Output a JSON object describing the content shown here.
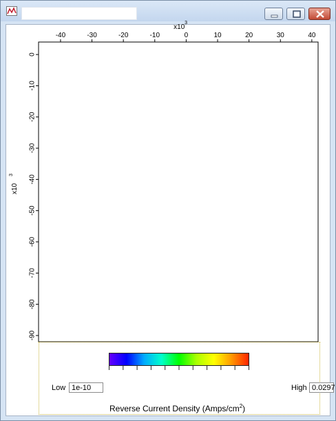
{
  "window": {
    "title": "",
    "buttons": [
      "minimize",
      "maximize",
      "close"
    ]
  },
  "wafer_map": {
    "x_axis": {
      "multiplier": "x10",
      "multiplier_exp": "3",
      "ticks": [
        "-40",
        "-30",
        "-20",
        "-10",
        "0",
        "10",
        "20",
        "30",
        "40"
      ],
      "tick_values": [
        -40,
        -30,
        -20,
        -10,
        0,
        10,
        20,
        30,
        40
      ],
      "range": [
        -47,
        42
      ]
    },
    "y_axis": {
      "multiplier": "x10",
      "multiplier_exp": "3",
      "ticks": [
        "0",
        "-10",
        "-20",
        "-30",
        "-40",
        "-50",
        "-60",
        "-70",
        "-80",
        "-90"
      ],
      "tick_values": [
        0,
        -10,
        -20,
        -30,
        -40,
        -50,
        -60,
        -70,
        -80,
        -90
      ],
      "range": [
        4,
        -92
      ]
    },
    "grid": true,
    "colors": {
      "pass": "#11ee22",
      "low": "#ffffff",
      "border": "#000000"
    }
  },
  "legend": {
    "title": "Reverse Current Density (Amps/cm",
    "title_exp": "2",
    "title_end": ")",
    "low_label": "Low",
    "low_value": "1e-10",
    "high_label": "High",
    "high_value": "0.0297",
    "gradient": [
      "#6600ff",
      "#0000ff",
      "#00aaff",
      "#00ffcc",
      "#00ff00",
      "#aaff00",
      "#ffff00",
      "#ff9900",
      "#ff2200"
    ]
  }
}
